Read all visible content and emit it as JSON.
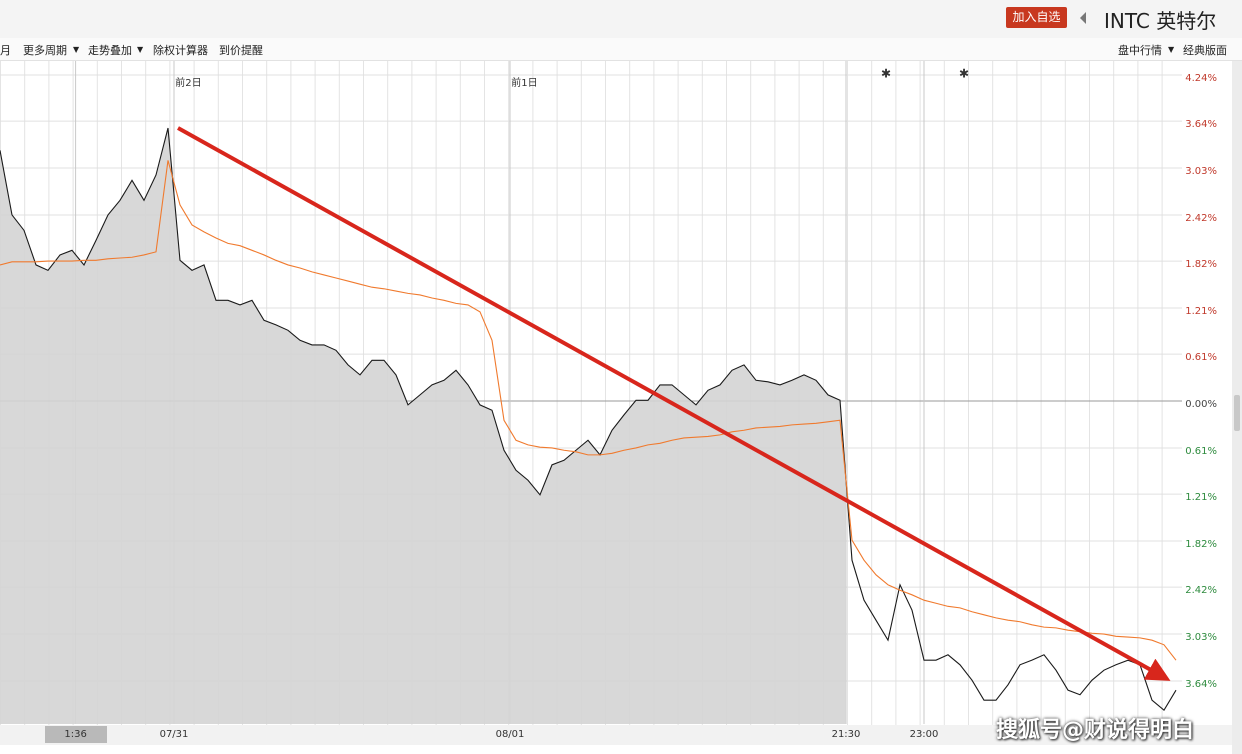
{
  "header": {
    "button": "加入自选",
    "title": "INTC 英特尔"
  },
  "toolbar": {
    "left": [
      "月",
      "更多周期",
      "走势叠加",
      "除权计算器",
      "到价提醒"
    ],
    "right": [
      "盘中行情",
      "经典版面"
    ]
  },
  "watermark": "搜狐号@财说得明白",
  "chart_data": {
    "type": "line",
    "x": [
      0,
      1,
      2,
      3,
      4,
      5,
      6,
      7,
      8,
      9,
      10,
      11,
      12,
      13,
      14,
      15,
      16,
      17,
      18,
      19,
      20,
      21,
      22,
      23,
      24,
      25,
      26,
      27,
      28,
      29,
      30,
      31,
      32,
      33,
      34,
      35,
      36,
      37,
      38,
      39,
      40,
      41,
      42,
      43,
      44,
      45,
      46,
      47,
      48,
      49,
      50,
      51,
      52,
      53,
      54,
      55,
      56,
      57,
      58,
      59,
      60,
      61,
      62,
      63,
      64,
      65,
      66,
      67,
      68,
      69,
      70,
      71,
      72,
      73,
      74,
      75,
      76,
      77,
      78,
      79,
      80,
      81,
      82,
      83,
      84,
      85,
      86,
      87,
      88,
      89,
      90,
      91,
      92,
      93,
      94,
      95,
      96,
      97,
      98
    ],
    "series": [
      {
        "color": "#1a1a1a",
        "fill": "#d4d4d4",
        "values": [
          3.26,
          2.42,
          2.22,
          1.77,
          1.7,
          1.9,
          1.96,
          1.77,
          2.09,
          2.42,
          2.61,
          2.87,
          2.61,
          2.94,
          3.55,
          1.83,
          1.7,
          1.77,
          1.31,
          1.31,
          1.25,
          1.31,
          1.05,
          0.99,
          0.92,
          0.79,
          0.73,
          0.73,
          0.66,
          0.47,
          0.34,
          0.53,
          0.53,
          0.34,
          -0.05,
          0.08,
          0.21,
          0.27,
          0.4,
          0.21,
          -0.05,
          -0.12,
          -0.64,
          -0.9,
          -1.03,
          -1.22,
          -0.83,
          -0.77,
          -0.64,
          -0.51,
          -0.7,
          -0.38,
          -0.18,
          0.01,
          0.01,
          0.21,
          0.21,
          0.08,
          -0.05,
          0.14,
          0.21,
          0.4,
          0.47,
          0.27,
          0.25,
          0.21,
          0.27,
          0.34,
          0.27,
          0.08,
          0.01,
          -2.07,
          -2.59,
          -2.85,
          -3.11,
          -2.39,
          -2.72,
          -3.37,
          -3.37,
          -3.3,
          -3.43,
          -3.63,
          -3.89,
          -3.89,
          -3.69,
          -3.43,
          -3.37,
          -3.3,
          -3.5,
          -3.76,
          -3.82,
          -3.63,
          -3.5,
          -3.43,
          -3.37,
          -3.43,
          -3.89,
          -4.02,
          -3.76
        ]
      },
      {
        "color": "#f07a2e",
        "values": [
          1.77,
          1.81,
          1.81,
          1.81,
          1.82,
          1.82,
          1.82,
          1.83,
          1.83,
          1.85,
          1.86,
          1.87,
          1.9,
          1.94,
          3.13,
          2.55,
          2.29,
          2.2,
          2.12,
          2.05,
          2.02,
          1.96,
          1.9,
          1.83,
          1.77,
          1.73,
          1.68,
          1.64,
          1.6,
          1.56,
          1.52,
          1.48,
          1.46,
          1.43,
          1.4,
          1.38,
          1.34,
          1.31,
          1.27,
          1.25,
          1.16,
          0.79,
          -0.25,
          -0.51,
          -0.57,
          -0.6,
          -0.61,
          -0.64,
          -0.66,
          -0.7,
          -0.7,
          -0.68,
          -0.64,
          -0.61,
          -0.57,
          -0.55,
          -0.51,
          -0.48,
          -0.47,
          -0.46,
          -0.44,
          -0.4,
          -0.38,
          -0.35,
          -0.34,
          -0.33,
          -0.31,
          -0.3,
          -0.29,
          -0.27,
          -0.25,
          -1.81,
          -2.07,
          -2.26,
          -2.39,
          -2.46,
          -2.52,
          -2.59,
          -2.63,
          -2.67,
          -2.69,
          -2.74,
          -2.78,
          -2.82,
          -2.85,
          -2.87,
          -2.91,
          -2.94,
          -2.95,
          -2.98,
          -3.0,
          -3.02,
          -3.03,
          -3.06,
          -3.07,
          -3.08,
          -3.11,
          -3.17,
          -3.37
        ]
      }
    ],
    "xlim": [
      0,
      98.5
    ],
    "xticks": [
      {
        "value": 6.3,
        "label": "1:36"
      },
      {
        "value": 14.5,
        "label": "07/31"
      },
      {
        "value": 42.5,
        "label": "08/01"
      },
      {
        "value": 70.5,
        "label": "21:30"
      },
      {
        "value": 77,
        "label": "23:00"
      }
    ],
    "ylim": [
      -4.2,
      4.24
    ],
    "yticks": [
      {
        "value": 4.24,
        "label": "4.24%"
      },
      {
        "value": 3.64,
        "label": "3.64%"
      },
      {
        "value": 3.03,
        "label": "3.03%"
      },
      {
        "value": 2.42,
        "label": "2.42%"
      },
      {
        "value": 1.82,
        "label": "1.82%"
      },
      {
        "value": 1.21,
        "label": "1.21%"
      },
      {
        "value": 0.61,
        "label": "0.61%"
      },
      {
        "value": 0,
        "label": "0.00%"
      },
      {
        "value": -0.61,
        "label": "0.61%"
      },
      {
        "value": -1.21,
        "label": "1.21%"
      },
      {
        "value": -1.82,
        "label": "1.82%"
      },
      {
        "value": -2.42,
        "label": "2.42%"
      },
      {
        "value": -3.03,
        "label": "3.03%"
      },
      {
        "value": -3.64,
        "label": "3.64%"
      }
    ],
    "annotations": [
      {
        "text": "前2日",
        "x": 15.7
      },
      {
        "text": "前1日",
        "x": 43.7
      }
    ],
    "grid": true
  }
}
